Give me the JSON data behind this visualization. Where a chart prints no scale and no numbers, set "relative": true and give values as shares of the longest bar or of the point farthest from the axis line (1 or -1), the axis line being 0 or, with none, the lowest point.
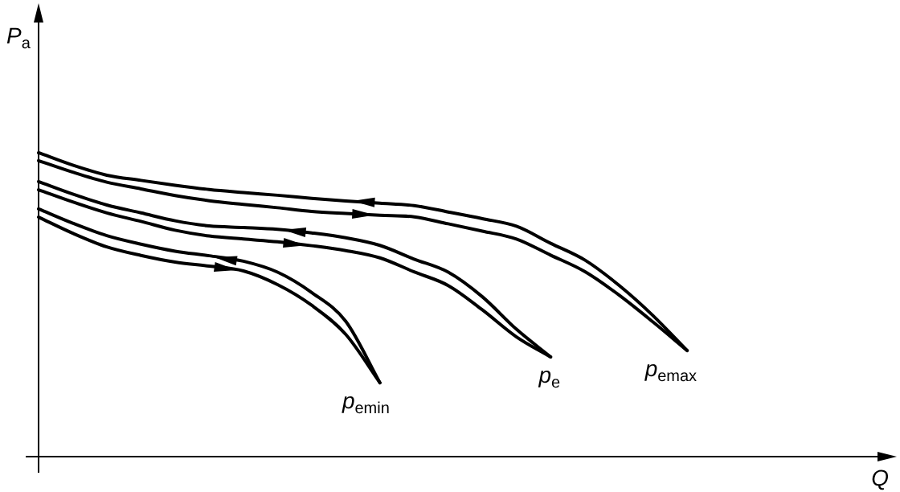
{
  "chart_data": {
    "type": "line",
    "relative": true,
    "xlabel": "Q",
    "ylabel": "P$_{a}$",
    "legend": false,
    "marker": "none",
    "line_style": "solid",
    "categories": [
      null,
      null,
      null,
      null,
      null,
      null,
      null,
      null,
      null,
      null,
      null,
      null,
      null,
      null,
      null,
      null,
      null,
      null,
      null,
      null,
      null,
      null,
      null,
      null,
      null,
      null
    ],
    "series": [
      {
        "name": "p$_{emax}$",
        "color": "#000000",
        "values": [
          1,
          0.959,
          0.926,
          0.909,
          0.893,
          0.879,
          0.869,
          0.86,
          0.85,
          0.841,
          0.834,
          0.826,
          0.805,
          0.783,
          0.758,
          0.702,
          0.647,
          0.564,
          0.464,
          0.349,
          null,
          null,
          null,
          null,
          null,
          null
        ]
      },
      {
        "color": "#000000",
        "values": [
          0.974,
          0.936,
          0.903,
          0.881,
          0.859,
          0.842,
          0.83,
          0.819,
          0.807,
          0.8,
          0.794,
          0.789,
          0.766,
          0.742,
          0.716,
          0.663,
          0.609,
          0.532,
          0.443,
          0.349,
          null,
          null,
          null,
          null,
          null,
          null
        ]
      },
      {
        "name": "p$_{e}$",
        "color": "#000000",
        "values": [
          0.905,
          0.864,
          0.828,
          0.802,
          0.776,
          0.759,
          0.754,
          0.748,
          0.736,
          0.72,
          0.695,
          0.65,
          0.607,
          0.526,
          0.419,
          0.328,
          null,
          null,
          null,
          null,
          null,
          null,
          null,
          null,
          null,
          null
        ]
      },
      {
        "color": "#000000",
        "values": [
          0.878,
          0.838,
          0.802,
          0.774,
          0.745,
          0.726,
          0.716,
          0.707,
          0.694,
          0.678,
          0.654,
          0.608,
          0.563,
          0.483,
          0.394,
          0.328,
          null,
          null,
          null,
          null,
          null,
          null,
          null,
          null,
          null,
          null
        ]
      },
      {
        "name": "p$_{emin}$",
        "color": "#000000",
        "values": [
          0.815,
          0.768,
          0.727,
          0.699,
          0.676,
          0.661,
          0.643,
          0.607,
          0.54,
          0.445,
          0.243,
          null,
          null,
          null,
          null,
          null,
          null,
          null,
          null,
          null,
          null,
          null,
          null,
          null,
          null,
          null
        ]
      },
      {
        "color": "#000000",
        "values": [
          0.788,
          0.735,
          0.69,
          0.662,
          0.64,
          0.627,
          0.611,
          0.566,
          0.498,
          0.402,
          0.243,
          null,
          null,
          null,
          null,
          null,
          null,
          null,
          null,
          null,
          null,
          null,
          null,
          null,
          null,
          null
        ]
      }
    ]
  }
}
